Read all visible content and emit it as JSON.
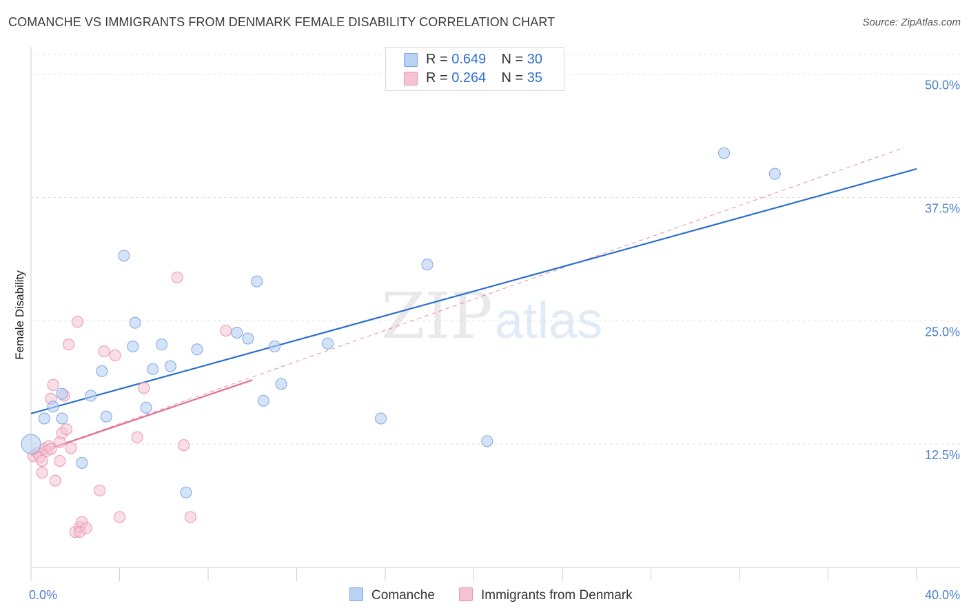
{
  "title": "COMANCHE VS IMMIGRANTS FROM DENMARK FEMALE DISABILITY CORRELATION CHART",
  "source": "Source: ZipAtlas.com",
  "legend": [
    {
      "r_label": "R = ",
      "r_value": "0.649",
      "n_label": "N = ",
      "n_value": "30"
    },
    {
      "r_label": "R = ",
      "r_value": "0.264",
      "n_label": "N = ",
      "n_value": "35"
    }
  ],
  "watermark": {
    "zip": "ZIP",
    "atlas": "atlas"
  },
  "colors": {
    "blue_fill": "#b9d1f3",
    "blue_stroke": "#7aa6e0",
    "blue_line": "#2a6fce",
    "pink_fill": "#f6c3d2",
    "pink_stroke": "#e994b0",
    "pink_line": "#e46a94",
    "grid": "#e0e0e0",
    "tick_text": "#4a7fcb"
  },
  "chart_data": {
    "type": "scatter",
    "title": "COMANCHE VS IMMIGRANTS FROM DENMARK FEMALE DISABILITY CORRELATION CHART",
    "xlabel": "",
    "ylabel": "Female Disability",
    "xlim": [
      0,
      40
    ],
    "ylim": [
      0,
      52
    ],
    "x_tick_labels": [
      "0.0%",
      "40.0%"
    ],
    "y_ticks": [
      12.5,
      25.0,
      37.5,
      50.0
    ],
    "y_tick_labels": [
      "12.5%",
      "25.0%",
      "37.5%",
      "50.0%"
    ],
    "grid": true,
    "legend_position": "top-center",
    "series": [
      {
        "name": "Comanche",
        "color": "#b9d1f3",
        "points": [
          [
            0.0,
            12.5
          ],
          [
            0.6,
            15.1
          ],
          [
            1.0,
            16.3
          ],
          [
            1.4,
            17.6
          ],
          [
            1.4,
            15.1
          ],
          [
            2.3,
            10.6
          ],
          [
            2.7,
            17.4
          ],
          [
            3.2,
            19.9
          ],
          [
            3.4,
            15.3
          ],
          [
            4.2,
            31.6
          ],
          [
            4.6,
            22.4
          ],
          [
            4.7,
            24.8
          ],
          [
            5.2,
            16.2
          ],
          [
            5.5,
            20.1
          ],
          [
            5.9,
            22.6
          ],
          [
            6.3,
            20.4
          ],
          [
            7.0,
            7.6
          ],
          [
            7.5,
            22.1
          ],
          [
            9.3,
            23.8
          ],
          [
            9.8,
            23.2
          ],
          [
            10.2,
            29.0
          ],
          [
            10.5,
            16.9
          ],
          [
            11.0,
            22.4
          ],
          [
            11.3,
            18.6
          ],
          [
            13.4,
            22.7
          ],
          [
            15.8,
            15.1
          ],
          [
            17.9,
            30.7
          ],
          [
            20.6,
            12.8
          ],
          [
            31.3,
            42.0
          ],
          [
            33.6,
            39.9
          ]
        ],
        "trend": {
          "x": [
            0,
            40
          ],
          "y": [
            15.6,
            40.4
          ]
        }
      },
      {
        "name": "Immigrants from Denmark",
        "color": "#f6c3d2",
        "points": [
          [
            0.1,
            11.3
          ],
          [
            0.3,
            11.6
          ],
          [
            0.4,
            11.2
          ],
          [
            0.5,
            10.8
          ],
          [
            0.5,
            9.6
          ],
          [
            0.6,
            12.0
          ],
          [
            0.7,
            11.8
          ],
          [
            0.8,
            12.3
          ],
          [
            0.9,
            12.0
          ],
          [
            0.9,
            17.1
          ],
          [
            1.0,
            18.5
          ],
          [
            1.1,
            8.8
          ],
          [
            1.3,
            12.7
          ],
          [
            1.3,
            10.8
          ],
          [
            1.4,
            13.6
          ],
          [
            1.5,
            17.4
          ],
          [
            1.6,
            14.0
          ],
          [
            1.7,
            22.6
          ],
          [
            1.8,
            12.1
          ],
          [
            2.0,
            3.6
          ],
          [
            2.1,
            24.9
          ],
          [
            2.2,
            4.1
          ],
          [
            2.2,
            3.6
          ],
          [
            2.3,
            4.6
          ],
          [
            2.5,
            4.0
          ],
          [
            3.1,
            7.8
          ],
          [
            3.3,
            21.9
          ],
          [
            3.8,
            21.5
          ],
          [
            4.0,
            5.1
          ],
          [
            4.8,
            13.2
          ],
          [
            5.1,
            18.2
          ],
          [
            6.6,
            29.4
          ],
          [
            6.9,
            12.4
          ],
          [
            7.2,
            5.1
          ],
          [
            8.8,
            24.0
          ]
        ],
        "trend": {
          "x": [
            0,
            10
          ],
          "y": [
            11.4,
            19.0
          ]
        },
        "trend_extended": {
          "x": [
            0,
            40
          ],
          "y": [
            11.4,
            43.0
          ]
        }
      }
    ]
  },
  "bottom_legend": [
    "Comanche",
    "Immigrants from Denmark"
  ]
}
